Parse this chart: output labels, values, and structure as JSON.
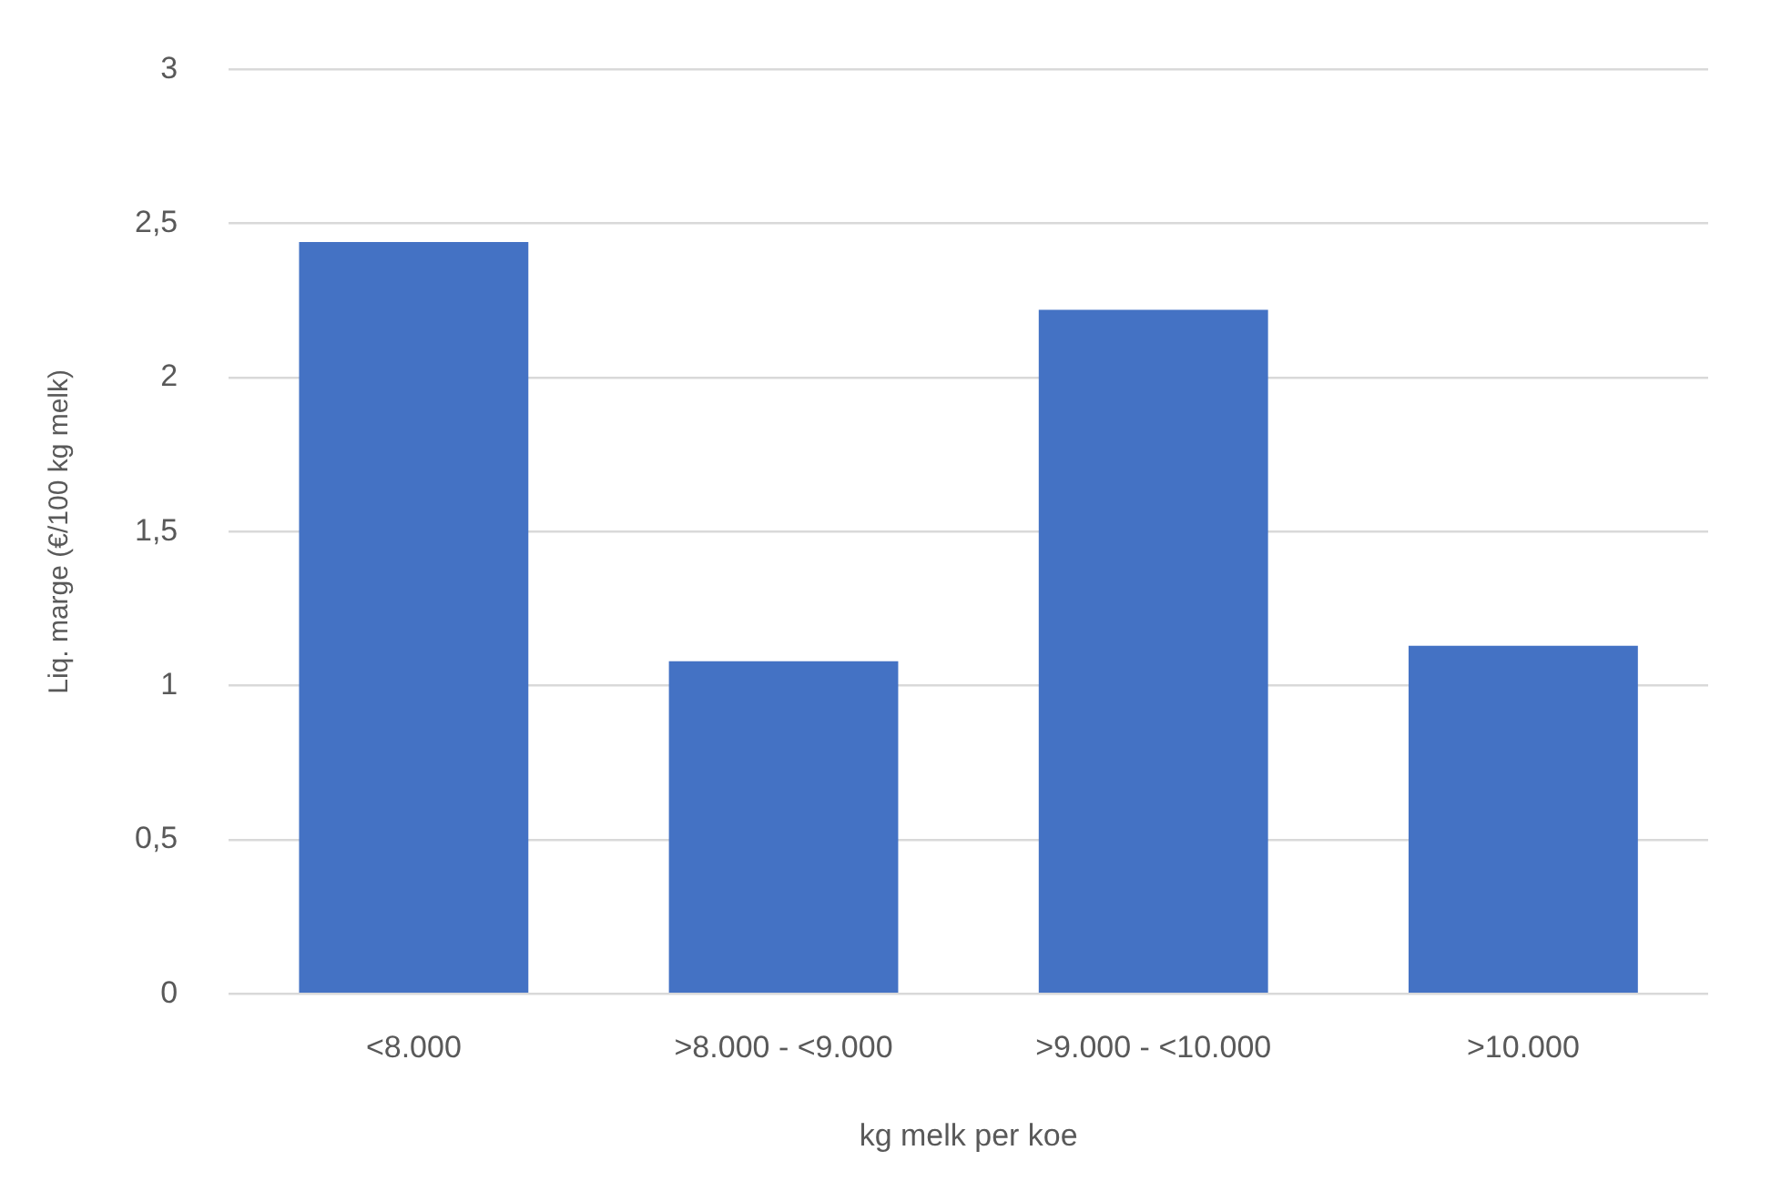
{
  "chart_data": {
    "type": "bar",
    "xlabel": "kg melk per koe",
    "ylabel": "Liq. marge (€/100 kg melk)",
    "categories": [
      "<8.000",
      ">8.000 - <9.000",
      ">9.000 - <10.000",
      ">10.000"
    ],
    "values": [
      2.44,
      1.08,
      2.22,
      1.13
    ],
    "color": "#4472c4",
    "ylim": [
      0,
      3
    ],
    "yticks": [
      0,
      {
        "value": 0.5,
        "label": "0,5"
      },
      1,
      {
        "value": 1.5,
        "label": "1,5"
      },
      2,
      {
        "value": 2.5,
        "label": "2,5"
      },
      3
    ],
    "grid": "y"
  }
}
